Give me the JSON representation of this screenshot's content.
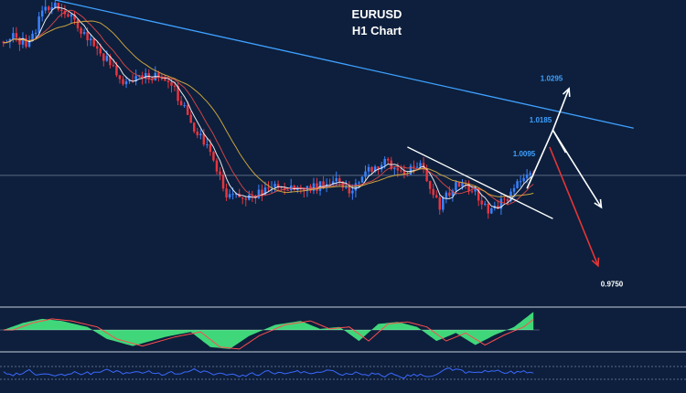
{
  "chart_data": [
    {
      "type": "candlestick",
      "symbol": "EURUSD",
      "timeframe": "H1 Chart",
      "title": "EURUSD",
      "subtitle": "H1 Chart",
      "ylim": [
        0.97,
        1.05
      ],
      "bars": 165,
      "price_path": [
        [
          0,
          1.039
        ],
        [
          4,
          1.04
        ],
        [
          9,
          1.038
        ],
        [
          13,
          1.047
        ],
        [
          16,
          1.049
        ],
        [
          20,
          1.047
        ],
        [
          24,
          1.043
        ],
        [
          29,
          1.038
        ],
        [
          34,
          1.033
        ],
        [
          38,
          1.028
        ],
        [
          43,
          1.029
        ],
        [
          48,
          1.03
        ],
        [
          54,
          1.026
        ],
        [
          60,
          1.016
        ],
        [
          66,
          1.008
        ],
        [
          70,
          0.998
        ],
        [
          75,
          0.9975
        ],
        [
          80,
          0.9985
        ],
        [
          86,
          1.001
        ],
        [
          92,
          0.9995
        ],
        [
          98,
          1.0005
        ],
        [
          104,
          1.003
        ],
        [
          108,
          0.999
        ],
        [
          114,
          1.005
        ],
        [
          119,
          1.007
        ],
        [
          125,
          1.004
        ],
        [
          130,
          1.006
        ],
        [
          136,
          0.9955
        ],
        [
          141,
          1.001
        ],
        [
          146,
          1.0
        ],
        [
          151,
          0.9945
        ],
        [
          156,
          0.9965
        ],
        [
          161,
          1.002
        ],
        [
          164,
          1.0035
        ]
      ],
      "moving_averages": [
        {
          "name": "",
          "period": 5,
          "color": "#ffffff"
        },
        {
          "name": "",
          "period": 10,
          "color": "#e04848"
        },
        {
          "name": "",
          "period": 20,
          "color": "#e0b040"
        }
      ],
      "colors": {
        "up": "#3b82ff",
        "down": "#e8353f",
        "background": "#0d1f3c"
      },
      "horizontal_line": 1.0035,
      "trendlines": [
        {
          "from": [
            16,
            1.05
          ],
          "to": [
            195,
            1.016
          ],
          "color": "#3fa0ff"
        },
        {
          "from": [
            125,
            1.011
          ],
          "to": [
            170,
            0.992
          ],
          "color": "#ffffff"
        }
      ],
      "projections": [
        {
          "kind": "bullish",
          "color": "#ffffff",
          "path": [
            [
              174,
              1.0095
            ],
            [
              170,
              1.0155
            ],
            [
              175,
              1.0265
            ]
          ]
        },
        {
          "kind": "breakout-reversal",
          "color": "#ffffff",
          "path": [
            [
              162,
              1.0
            ],
            [
              170,
              1.0155
            ],
            [
              185,
              0.995
            ]
          ]
        },
        {
          "kind": "bearish",
          "color": "#e53535",
          "path": [
            [
              169,
              1.011
            ],
            [
              184,
              0.9795
            ]
          ]
        }
      ],
      "annotations": [
        {
          "text": "1.0295",
          "price": 1.0295,
          "color": "#3fa0ff"
        },
        {
          "text": "1.0185",
          "price": 1.0185,
          "color": "#3fa0ff"
        },
        {
          "text": "1.0095",
          "price": 1.0095,
          "color": "#3fa0ff"
        },
        {
          "text": "0.9750",
          "price": 0.975,
          "color": "#ffffff"
        }
      ]
    },
    {
      "type": "area",
      "panel": "oscillator",
      "colors": {
        "fill": "#3fd77a",
        "signal": "#ff4d4d"
      },
      "zero_line": 0,
      "values_by_bar": [
        [
          0,
          0.0
        ],
        [
          6,
          0.35
        ],
        [
          12,
          0.55
        ],
        [
          18,
          0.45
        ],
        [
          26,
          0.15
        ],
        [
          32,
          -0.45
        ],
        [
          40,
          -0.8
        ],
        [
          50,
          -0.35
        ],
        [
          58,
          -0.1
        ],
        [
          64,
          -0.85
        ],
        [
          70,
          -0.95
        ],
        [
          76,
          -0.3
        ],
        [
          84,
          0.25
        ],
        [
          92,
          0.45
        ],
        [
          98,
          0.05
        ],
        [
          104,
          0.15
        ],
        [
          110,
          -0.55
        ],
        [
          116,
          0.3
        ],
        [
          122,
          0.4
        ],
        [
          128,
          0.15
        ],
        [
          134,
          -0.55
        ],
        [
          140,
          -0.15
        ],
        [
          146,
          -0.75
        ],
        [
          152,
          -0.25
        ],
        [
          158,
          0.15
        ],
        [
          164,
          0.9
        ]
      ]
    },
    {
      "type": "line",
      "panel": "indicator",
      "colors": {
        "line": "#3b68ff",
        "levels": "#5a6b8a"
      },
      "noise_seed": 7
    }
  ]
}
